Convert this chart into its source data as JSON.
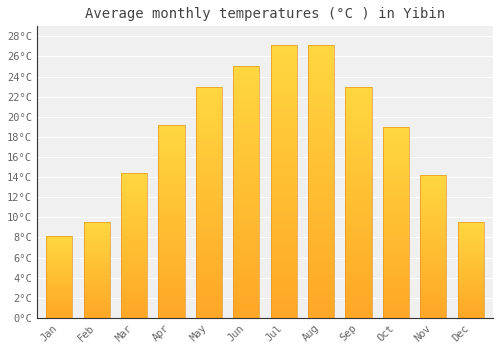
{
  "title": "Average monthly temperatures (°C ) in Yibin",
  "months": [
    "Jan",
    "Feb",
    "Mar",
    "Apr",
    "May",
    "Jun",
    "Jul",
    "Aug",
    "Sep",
    "Oct",
    "Nov",
    "Dec"
  ],
  "temperatures": [
    8.1,
    9.5,
    14.4,
    19.2,
    23.0,
    25.0,
    27.1,
    27.1,
    23.0,
    19.0,
    14.2,
    9.5
  ],
  "bar_color_bottom": "#FFA726",
  "bar_color_top": "#FFD740",
  "bar_edge_color": "#E69520",
  "ylim": [
    0,
    29
  ],
  "yticks": [
    0,
    2,
    4,
    6,
    8,
    10,
    12,
    14,
    16,
    18,
    20,
    22,
    24,
    26,
    28
  ],
  "ytick_labels": [
    "0°C",
    "2°C",
    "4°C",
    "6°C",
    "8°C",
    "10°C",
    "12°C",
    "14°C",
    "16°C",
    "18°C",
    "20°C",
    "22°C",
    "24°C",
    "26°C",
    "28°C"
  ],
  "background_color": "#ffffff",
  "plot_bg_color": "#f0f0f0",
  "grid_color": "#ffffff",
  "title_fontsize": 10,
  "tick_fontsize": 7.5,
  "bar_width": 0.7,
  "title_color": "#444444",
  "tick_color": "#666666",
  "n_grad": 100
}
